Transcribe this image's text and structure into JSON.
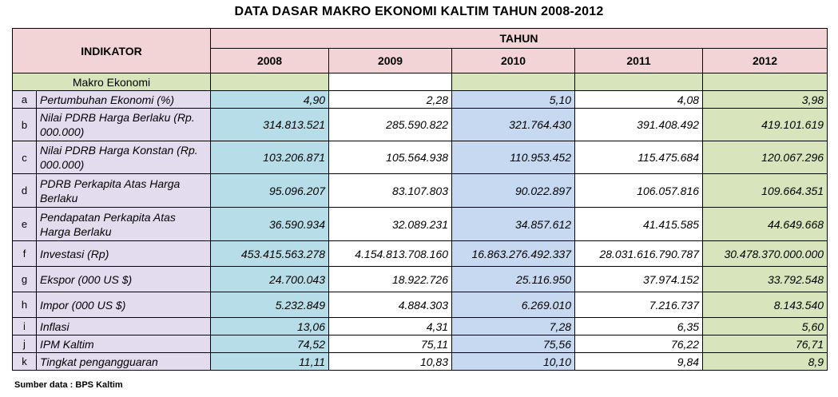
{
  "title": "DATA DASAR MAKRO EKONOMI KALTIM TAHUN 2008-2012",
  "header": {
    "indikator": "INDIKATOR",
    "tahun": "TAHUN",
    "years": [
      "2008",
      "2009",
      "2010",
      "2011",
      "2012"
    ]
  },
  "section_label": "Makro Ekonomi",
  "rows": [
    {
      "letter": "a",
      "label": "Pertumbuhan Ekonomi (%)",
      "values": [
        "4,90",
        "2,28",
        "5,10",
        "4,08",
        "3,98"
      ]
    },
    {
      "letter": "b",
      "label": "Nilai PDRB Harga Berlaku (Rp. 000.000)",
      "values": [
        "314.813.521",
        "285.590.822",
        "321.764.430",
        "391.408.492",
        "419.101.619"
      ]
    },
    {
      "letter": "c",
      "label": "Nilai PDRB Harga Konstan (Rp. 000.000)",
      "values": [
        "103.206.871",
        "105.564.938",
        "110.953.452",
        "115.475.684",
        "120.067.296"
      ]
    },
    {
      "letter": "d",
      "label": "PDRB Perkapita Atas Harga Berlaku",
      "values": [
        "95.096.207",
        "83.107.803",
        "90.022.897",
        "106.057.816",
        "109.664.351"
      ]
    },
    {
      "letter": "e",
      "label": "Pendapatan Perkapita Atas Harga Berlaku",
      "values": [
        "36.590.934",
        "32.089.231",
        "34.857.612",
        "41.415.585",
        "44.649.668"
      ]
    },
    {
      "letter": "f",
      "label": "Investasi (Rp)",
      "values": [
        "453.415.563.278",
        "4.154.813.708.160",
        "16.863.276.492.337",
        "28.031.616.790.787",
        "30.478.370.000.000"
      ]
    },
    {
      "letter": "g",
      "label": "Ekspor (000 US $)",
      "values": [
        "24.700.043",
        "18.922.726",
        "25.116.950",
        "37.974.152",
        "33.792.548"
      ]
    },
    {
      "letter": "h",
      "label": "Impor (000 US $)",
      "values": [
        "5.232.849",
        "4.884.303",
        "6.269.010",
        "7.216.737",
        "8.143.540"
      ]
    },
    {
      "letter": "i",
      "label": "Inflasi",
      "values": [
        "13,06",
        "4,31",
        "7,28",
        "6,35",
        "5,60"
      ]
    },
    {
      "letter": "j",
      "label": "IPM Kaltim",
      "values": [
        "74,52",
        "75,11",
        "75,56",
        "76,22",
        "76,71"
      ]
    },
    {
      "letter": "k",
      "label": "Tingkat pengangguaran",
      "values": [
        "11,11",
        "10,83",
        "10,10",
        "9,84",
        "8,9"
      ]
    }
  ],
  "source": "Sumber data : BPS Kaltim",
  "colors": {
    "header_pink": "#f2d3d6",
    "label_lavender": "#e3dcef",
    "col_2008": "#b6dde8",
    "col_2010": "#c6d9f1",
    "col_2012": "#d7e4bc"
  }
}
